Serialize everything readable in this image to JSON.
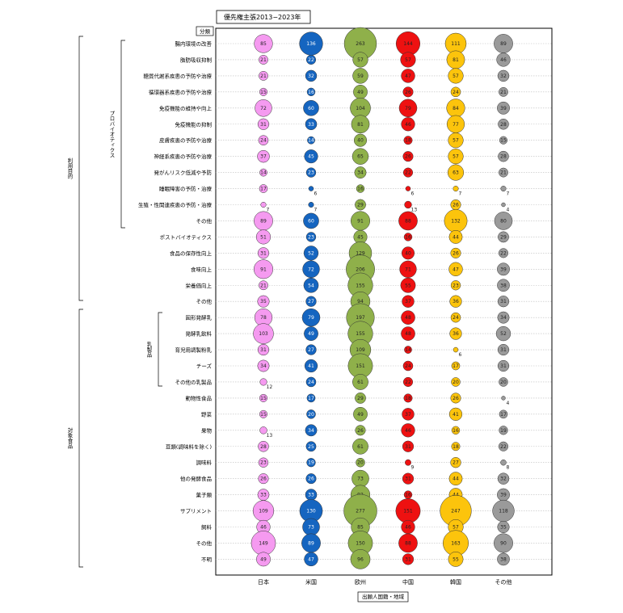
{
  "chart_data": {
    "type": "bubble",
    "title": "優先権主張2013−2023年",
    "corner_label": "分類",
    "xlabel": "出願人国籍・地域",
    "columns": [
      "日本",
      "米国",
      "欧州",
      "中国",
      "韓国",
      "その他"
    ],
    "colors": [
      "#f59af0",
      "#1565c0",
      "#8fb04a",
      "#ee1111",
      "#fcc40c",
      "#9a9a9a"
    ],
    "groups": [
      {
        "label": "利用目的",
        "from": 0,
        "to": 17
      },
      {
        "label": "対象食品",
        "from": 18,
        "to": 32
      }
    ],
    "subgroups": [
      {
        "label": "プロバイオティクス",
        "from": 0,
        "to": 11
      },
      {
        "label": "乳製品",
        "from": 18,
        "to": 22
      }
    ],
    "rows": [
      {
        "label": "腸内環境の改善",
        "values": [
          85,
          136,
          263,
          144,
          111,
          89
        ]
      },
      {
        "label": "脂肪吸収抑制",
        "values": [
          21,
          22,
          57,
          57,
          81,
          46
        ]
      },
      {
        "label": "糖質代謝系疾患の予防や治療",
        "values": [
          21,
          32,
          59,
          47,
          57,
          32
        ]
      },
      {
        "label": "循環器系疾患の予防や治療",
        "values": [
          15,
          16,
          49,
          26,
          24,
          21
        ]
      },
      {
        "label": "免疫機能の維持や向上",
        "values": [
          72,
          60,
          104,
          79,
          84,
          39
        ]
      },
      {
        "label": "免疫機能の抑制",
        "values": [
          31,
          33,
          81,
          46,
          77,
          28
        ]
      },
      {
        "label": "皮膚疾患の予防や治療",
        "values": [
          24,
          14,
          40,
          18,
          57,
          15
        ]
      },
      {
        "label": "神経系疾患の予防や治療",
        "values": [
          37,
          45,
          65,
          26,
          57,
          28
        ]
      },
      {
        "label": "発がんリスク低減や予防",
        "values": [
          14,
          23,
          34,
          22,
          63,
          21
        ]
      },
      {
        "label": "睡眠障害の予防・治療",
        "values": [
          17,
          6,
          16,
          6,
          7,
          7
        ]
      },
      {
        "label": "生殖・性関連疾患の予防・治療",
        "values": [
          7,
          7,
          29,
          13,
          26,
          4
        ]
      },
      {
        "label": "その他",
        "values": [
          89,
          60,
          91,
          88,
          132,
          80
        ]
      },
      {
        "label": "ポストバイオティクス",
        "values": [
          51,
          23,
          45,
          16,
          44,
          29
        ]
      },
      {
        "label": "食品の保存性向上",
        "values": [
          31,
          52,
          129,
          40,
          26,
          22
        ]
      },
      {
        "label": "食味向上",
        "values": [
          91,
          72,
          206,
          71,
          47,
          39
        ]
      },
      {
        "label": "栄養価向上",
        "values": [
          21,
          54,
          155,
          55,
          23,
          38
        ]
      },
      {
        "label": "その他",
        "values": [
          35,
          27,
          94,
          37,
          36,
          31
        ]
      },
      {
        "label": "固形発酵乳",
        "values": [
          78,
          79,
          197,
          48,
          24,
          34
        ]
      },
      {
        "label": "発酵乳飲料",
        "values": [
          103,
          49,
          155,
          48,
          36,
          52
        ]
      },
      {
        "label": "育児用調製粉乳",
        "values": [
          31,
          27,
          109,
          14,
          6,
          31
        ]
      },
      {
        "label": "チーズ",
        "values": [
          34,
          41,
          151,
          24,
          17,
          31
        ]
      },
      {
        "label": "その他の乳製品",
        "values": [
          12,
          24,
          61,
          22,
          20,
          20
        ]
      },
      {
        "label": "動物性食品",
        "values": [
          15,
          17,
          29,
          18,
          26,
          4
        ]
      },
      {
        "label": "野菜",
        "values": [
          15,
          20,
          49,
          37,
          41,
          17
        ]
      },
      {
        "label": "果物",
        "values": [
          13,
          34,
          26,
          46,
          16,
          19
        ]
      },
      {
        "label": "豆類(調味料を除く)",
        "values": [
          28,
          25,
          61,
          31,
          18,
          22
        ]
      },
      {
        "label": "調味料",
        "values": [
          23,
          19,
          20,
          9,
          27,
          8
        ]
      },
      {
        "label": "他の発酵食品",
        "values": [
          26,
          26,
          73,
          31,
          44,
          32
        ]
      },
      {
        "label": "菓子類",
        "values": [
          33,
          33,
          92,
          16,
          44,
          39
        ]
      },
      {
        "label": "サプリメント",
        "values": [
          109,
          130,
          277,
          151,
          247,
          118
        ]
      },
      {
        "label": "飼料",
        "values": [
          46,
          73,
          85,
          46,
          57,
          35
        ]
      },
      {
        "label": "その他",
        "values": [
          149,
          89,
          150,
          88,
          163,
          90
        ]
      },
      {
        "label": "不明",
        "values": [
          49,
          47,
          96,
          31,
          55,
          38
        ]
      }
    ]
  }
}
